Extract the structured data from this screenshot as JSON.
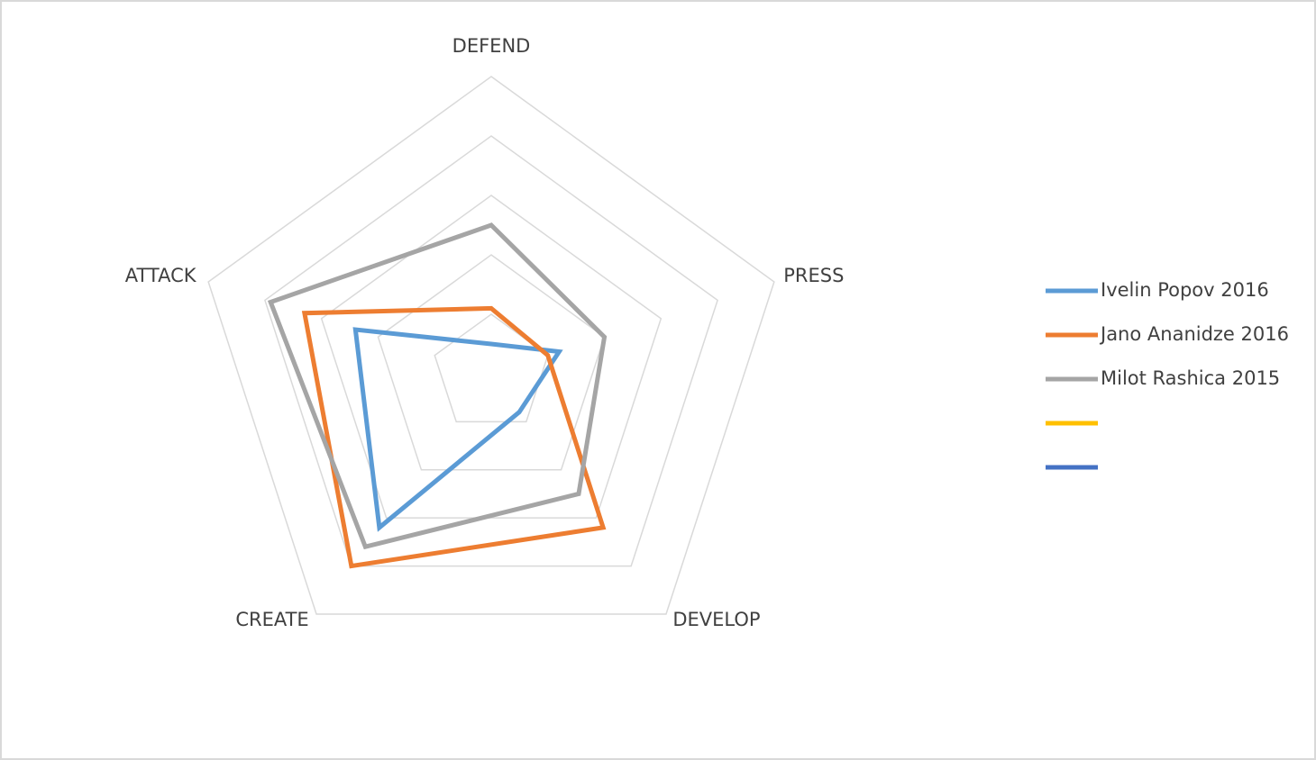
{
  "chart_data": {
    "type": "radar",
    "categories": [
      "DEFEND",
      "PRESS",
      "DEVELOP",
      "CREATE",
      "ATTACK"
    ],
    "series": [
      {
        "name": "Ivelin Popov 2016",
        "color": "#5b9bd5",
        "values": [
          0.5,
          1.2,
          0.8,
          3.2,
          2.4
        ]
      },
      {
        "name": "Jano Ananidze 2016",
        "color": "#ed7d31",
        "values": [
          1.1,
          1.0,
          3.2,
          4.0,
          3.3
        ]
      },
      {
        "name": "Milot Rashica 2015",
        "color": "#a5a5a5",
        "values": [
          2.5,
          2.0,
          2.5,
          3.6,
          3.9
        ]
      },
      {
        "name": null,
        "color": "#ffc000",
        "values": [
          null,
          null,
          null,
          null,
          null
        ]
      },
      {
        "name": null,
        "color": "#4472c4",
        "values": [
          null,
          null,
          null,
          null,
          null
        ]
      }
    ],
    "ylim": [
      0,
      5
    ],
    "yticks": [
      1,
      2,
      3,
      4,
      5
    ],
    "grid": true,
    "legend": "right"
  }
}
